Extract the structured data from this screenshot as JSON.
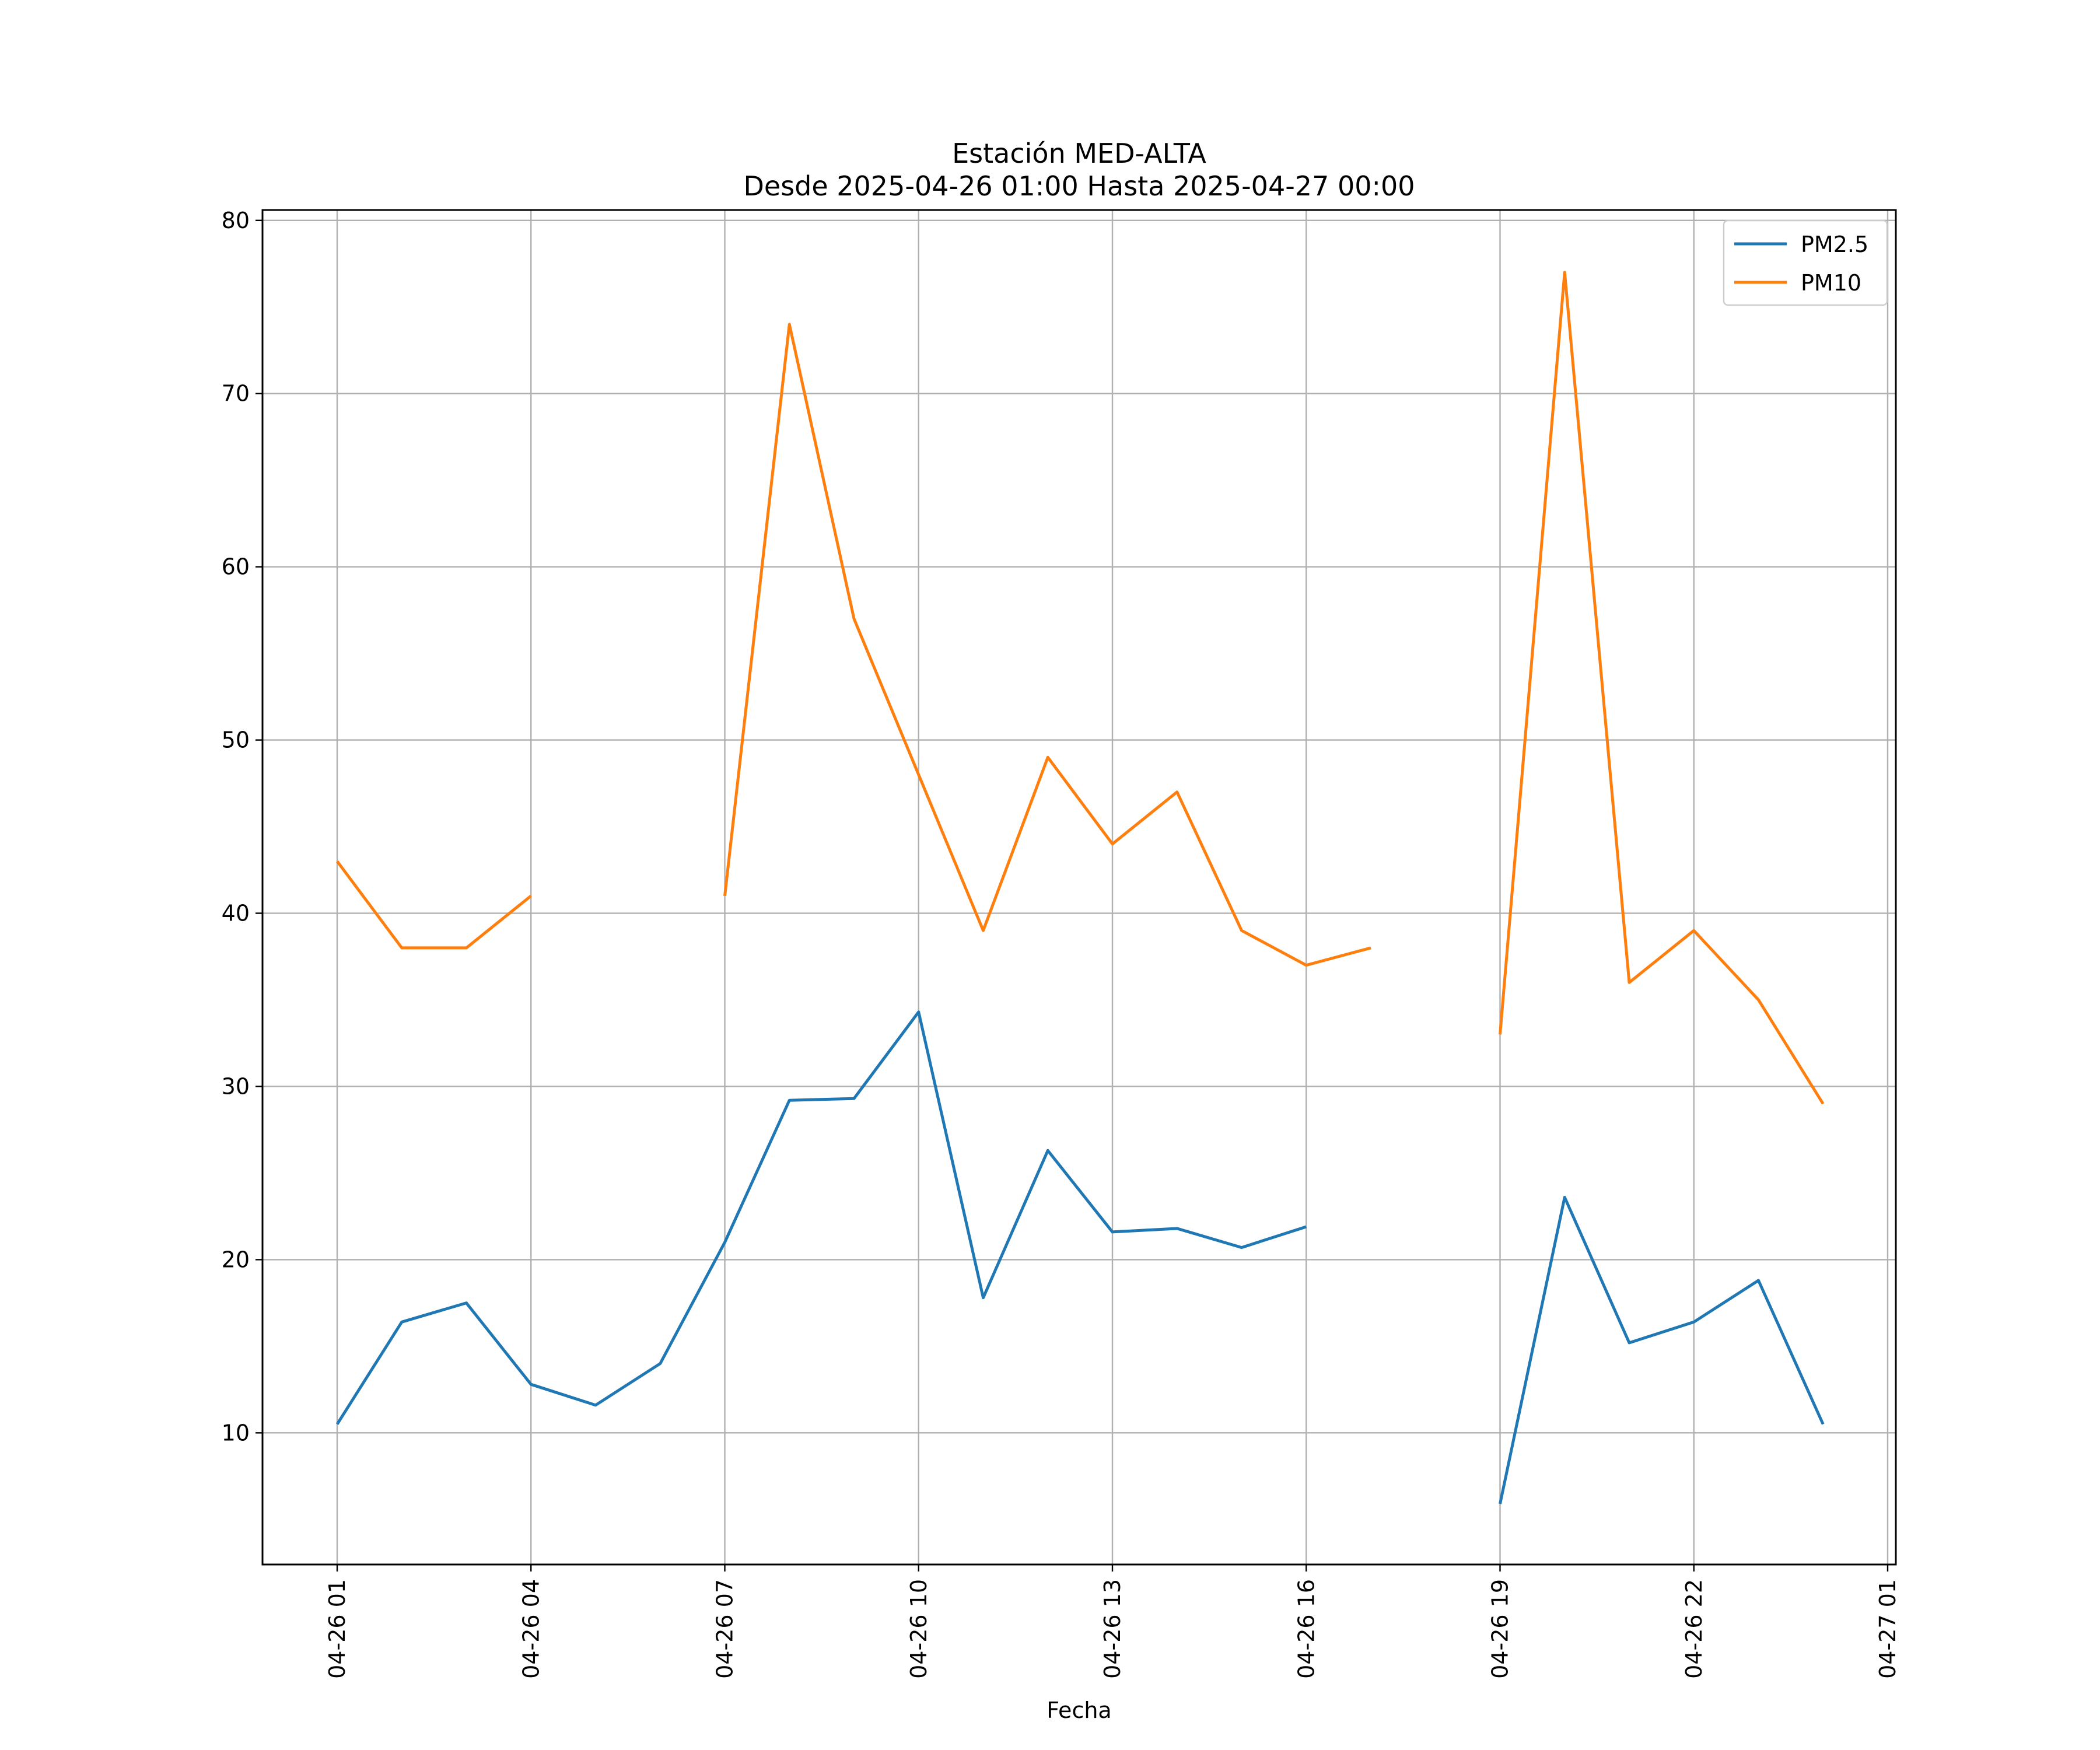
{
  "chart_data": {
    "type": "line",
    "title_line1": "Estación MED-ALTA",
    "title_line2": "Desde 2025-04-26 01:00 Hasta 2025-04-27 00:00",
    "xlabel": "Fecha",
    "ylabel": "",
    "x_range": [
      "2025-04-26 00:00",
      "2025-04-27 01:00"
    ],
    "ylim": [
      2.4,
      80.6
    ],
    "yticks": [
      10,
      20,
      30,
      40,
      50,
      60,
      70,
      80
    ],
    "xticks": [
      {
        "label": "04-26 01",
        "x": "2025-04-26 01:00"
      },
      {
        "label": "04-26 04",
        "x": "2025-04-26 04:00"
      },
      {
        "label": "04-26 07",
        "x": "2025-04-26 07:00"
      },
      {
        "label": "04-26 10",
        "x": "2025-04-26 10:00"
      },
      {
        "label": "04-26 13",
        "x": "2025-04-26 13:00"
      },
      {
        "label": "04-26 16",
        "x": "2025-04-26 16:00"
      },
      {
        "label": "04-26 19",
        "x": "2025-04-26 19:00"
      },
      {
        "label": "04-26 22",
        "x": "2025-04-26 22:00"
      },
      {
        "label": "04-27 01",
        "x": "2025-04-27 01:00"
      }
    ],
    "grid": true,
    "legend_position": "top-right",
    "x": [
      "2025-04-26 01:00",
      "2025-04-26 02:00",
      "2025-04-26 03:00",
      "2025-04-26 04:00",
      "2025-04-26 05:00",
      "2025-04-26 06:00",
      "2025-04-26 07:00",
      "2025-04-26 08:00",
      "2025-04-26 09:00",
      "2025-04-26 10:00",
      "2025-04-26 11:00",
      "2025-04-26 12:00",
      "2025-04-26 13:00",
      "2025-04-26 14:00",
      "2025-04-26 15:00",
      "2025-04-26 16:00",
      "2025-04-26 17:00",
      "2025-04-26 18:00",
      "2025-04-26 19:00",
      "2025-04-26 20:00",
      "2025-04-26 21:00",
      "2025-04-26 22:00",
      "2025-04-26 23:00",
      "2025-04-27 00:00"
    ],
    "series": [
      {
        "name": "PM2.5",
        "color": "#1f77b4",
        "values": [
          10.5,
          16.4,
          17.5,
          12.8,
          11.6,
          14.0,
          21.0,
          29.2,
          29.3,
          34.3,
          17.8,
          26.3,
          21.6,
          21.8,
          20.7,
          21.9,
          null,
          null,
          5.9,
          23.6,
          15.2,
          16.4,
          18.8,
          10.5
        ]
      },
      {
        "name": "PM10",
        "color": "#ff7f0e",
        "values": [
          43,
          38,
          38,
          41,
          null,
          null,
          41,
          74,
          57,
          48,
          39,
          49,
          44,
          47,
          39,
          37,
          38,
          null,
          33,
          77,
          36,
          39,
          35,
          29
        ]
      }
    ]
  }
}
